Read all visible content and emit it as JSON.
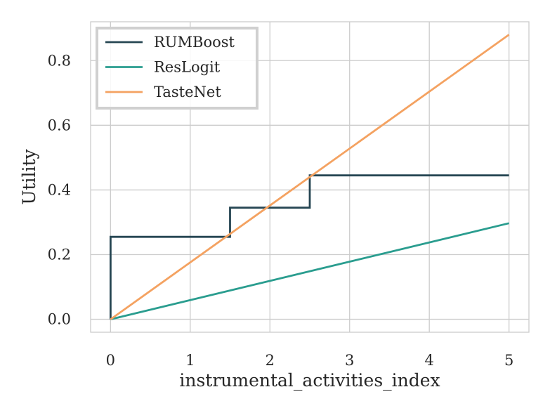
{
  "chart_data": {
    "type": "line",
    "title": "",
    "xlabel": "instrumental_activities_index",
    "ylabel": "Utility",
    "xlim": [
      -0.25,
      5.25
    ],
    "ylim": [
      -0.04,
      0.92
    ],
    "xticks": [
      0,
      1,
      2,
      3,
      4,
      5
    ],
    "xtick_labels": [
      "0",
      "1",
      "2",
      "3",
      "4",
      "5"
    ],
    "yticks": [
      0.0,
      0.2,
      0.4,
      0.6,
      0.8
    ],
    "ytick_labels": [
      "0.0",
      "0.2",
      "0.4",
      "0.6",
      "0.8"
    ],
    "grid": true,
    "legend_position": "top-left",
    "series": [
      {
        "name": "RUMBoost",
        "color": "#264653",
        "points": [
          [
            0,
            0.0
          ],
          [
            0,
            0.255
          ],
          [
            1.5,
            0.255
          ],
          [
            1.5,
            0.345
          ],
          [
            2.5,
            0.345
          ],
          [
            2.5,
            0.445
          ],
          [
            5,
            0.445
          ]
        ]
      },
      {
        "name": "ResLogit",
        "color": "#2a9d8f",
        "points": [
          [
            0,
            0.0
          ],
          [
            5,
            0.297
          ]
        ]
      },
      {
        "name": "TasteNet",
        "color": "#f4a261",
        "points": [
          [
            0,
            0.0
          ],
          [
            5,
            0.88
          ]
        ]
      }
    ]
  }
}
